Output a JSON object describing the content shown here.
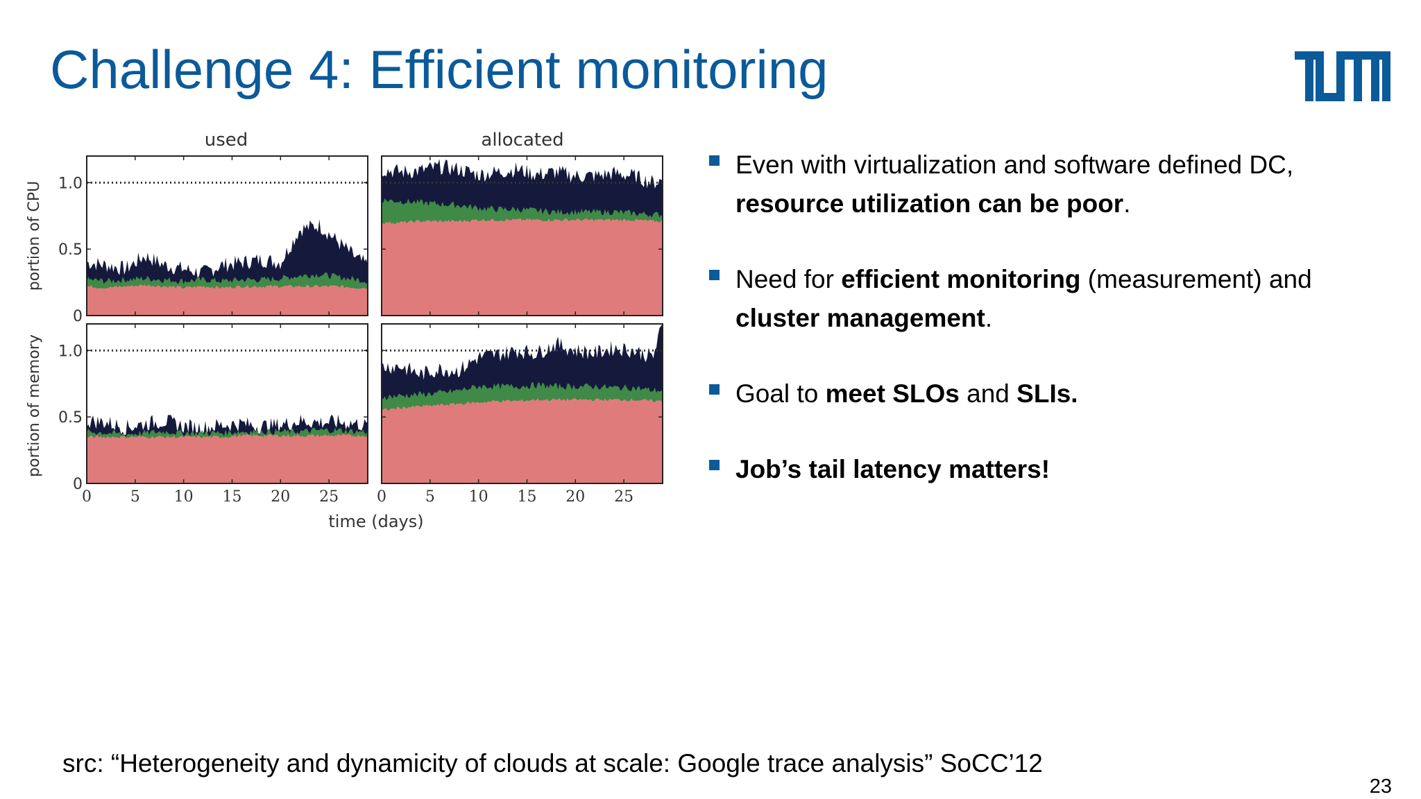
{
  "slide": {
    "title": "Challenge 4: Efficient monitoring",
    "page_number": "23",
    "source": "src: “Heterogeneity and dynamicity of clouds at scale: Google trace analysis” SoCC’12",
    "logo_text": "TUM",
    "accent_color": "#0b5a9a"
  },
  "bullets": [
    {
      "parts": [
        {
          "t": "Even with virtualization and software defined DC, ",
          "b": false
        },
        {
          "t": "resource utilization can be poor",
          "b": true
        },
        {
          "t": ".",
          "b": false
        }
      ]
    },
    {
      "parts": [
        {
          "t": "Need for ",
          "b": false
        },
        {
          "t": "efficient monitoring",
          "b": true
        },
        {
          "t": " (measurement) and ",
          "b": false
        },
        {
          "t": "cluster management",
          "b": true
        },
        {
          "t": ".",
          "b": false
        }
      ]
    },
    {
      "parts": [
        {
          "t": "Goal to ",
          "b": false
        },
        {
          "t": "meet SLOs",
          "b": true
        },
        {
          "t": " and ",
          "b": false
        },
        {
          "t": "SLIs.",
          "b": true
        }
      ]
    },
    {
      "parts": [
        {
          "t": "Job’s tail latency matters!",
          "b": true
        }
      ]
    }
  ],
  "chart_data": {
    "type": "area",
    "column_titles": [
      "used",
      "allocated"
    ],
    "row_labels": [
      "portion of CPU",
      "portion of memory"
    ],
    "xlabel": "time (days)",
    "x_ticks": [
      0,
      5,
      10,
      15,
      20,
      25
    ],
    "y_ticks": [
      0,
      0.5,
      1.0
    ],
    "y_tick_labels": [
      "0",
      "0.5",
      "1.0"
    ],
    "xlim": [
      0,
      29
    ],
    "ylim": [
      0,
      1.2
    ],
    "capacity_line": 1.0,
    "colors": {
      "layer1": "#e07b7b",
      "layer2": "#3f8a46",
      "layer3": "#151a3d"
    },
    "panels": [
      {
        "name": "cpu-used",
        "x": [
          0,
          2,
          4,
          6,
          8,
          10,
          12,
          14,
          16,
          18,
          20,
          22,
          24,
          26,
          28,
          29
        ],
        "layer1": [
          0.22,
          0.21,
          0.22,
          0.23,
          0.22,
          0.21,
          0.22,
          0.21,
          0.22,
          0.22,
          0.22,
          0.22,
          0.22,
          0.22,
          0.21,
          0.21
        ],
        "layer2": [
          0.27,
          0.26,
          0.27,
          0.28,
          0.27,
          0.26,
          0.27,
          0.26,
          0.27,
          0.27,
          0.28,
          0.3,
          0.31,
          0.29,
          0.27,
          0.26
        ],
        "layer3": [
          0.4,
          0.38,
          0.35,
          0.45,
          0.38,
          0.35,
          0.32,
          0.38,
          0.4,
          0.42,
          0.4,
          0.65,
          0.68,
          0.55,
          0.42,
          0.38
        ]
      },
      {
        "name": "cpu-allocated",
        "x": [
          0,
          2,
          4,
          6,
          8,
          10,
          12,
          14,
          16,
          18,
          20,
          22,
          24,
          26,
          28,
          29
        ],
        "layer1": [
          0.7,
          0.7,
          0.71,
          0.71,
          0.71,
          0.72,
          0.72,
          0.72,
          0.72,
          0.72,
          0.72,
          0.72,
          0.72,
          0.72,
          0.71,
          0.71
        ],
        "layer2": [
          0.87,
          0.86,
          0.85,
          0.84,
          0.83,
          0.81,
          0.8,
          0.8,
          0.79,
          0.78,
          0.78,
          0.78,
          0.78,
          0.77,
          0.76,
          0.76
        ],
        "layer3": [
          1.1,
          1.08,
          1.09,
          1.12,
          1.1,
          1.06,
          1.08,
          1.1,
          1.06,
          1.08,
          1.05,
          1.05,
          1.07,
          1.05,
          1.0,
          1.02
        ]
      },
      {
        "name": "mem-used",
        "x": [
          0,
          2,
          4,
          6,
          8,
          10,
          12,
          14,
          16,
          18,
          20,
          22,
          24,
          26,
          28,
          29
        ],
        "layer1": [
          0.35,
          0.35,
          0.35,
          0.35,
          0.35,
          0.35,
          0.35,
          0.35,
          0.36,
          0.36,
          0.36,
          0.36,
          0.36,
          0.36,
          0.36,
          0.36
        ],
        "layer2": [
          0.39,
          0.38,
          0.37,
          0.38,
          0.39,
          0.38,
          0.38,
          0.38,
          0.39,
          0.39,
          0.39,
          0.39,
          0.4,
          0.4,
          0.39,
          0.39
        ],
        "layer3": [
          0.47,
          0.46,
          0.42,
          0.45,
          0.47,
          0.43,
          0.42,
          0.44,
          0.45,
          0.43,
          0.44,
          0.47,
          0.46,
          0.46,
          0.45,
          0.43
        ]
      },
      {
        "name": "mem-allocated",
        "x": [
          0,
          2,
          4,
          6,
          8,
          10,
          12,
          14,
          16,
          18,
          20,
          22,
          24,
          26,
          28,
          29
        ],
        "layer1": [
          0.55,
          0.57,
          0.58,
          0.59,
          0.6,
          0.61,
          0.62,
          0.62,
          0.63,
          0.63,
          0.63,
          0.63,
          0.63,
          0.63,
          0.62,
          0.62
        ],
        "layer2": [
          0.65,
          0.66,
          0.67,
          0.68,
          0.7,
          0.73,
          0.73,
          0.73,
          0.74,
          0.73,
          0.73,
          0.73,
          0.72,
          0.72,
          0.7,
          0.7
        ],
        "layer3": [
          0.88,
          0.88,
          0.82,
          0.86,
          0.85,
          0.95,
          0.97,
          1.0,
          0.98,
          1.05,
          1.0,
          0.98,
          1.02,
          1.0,
          0.95,
          1.2
        ]
      }
    ]
  }
}
